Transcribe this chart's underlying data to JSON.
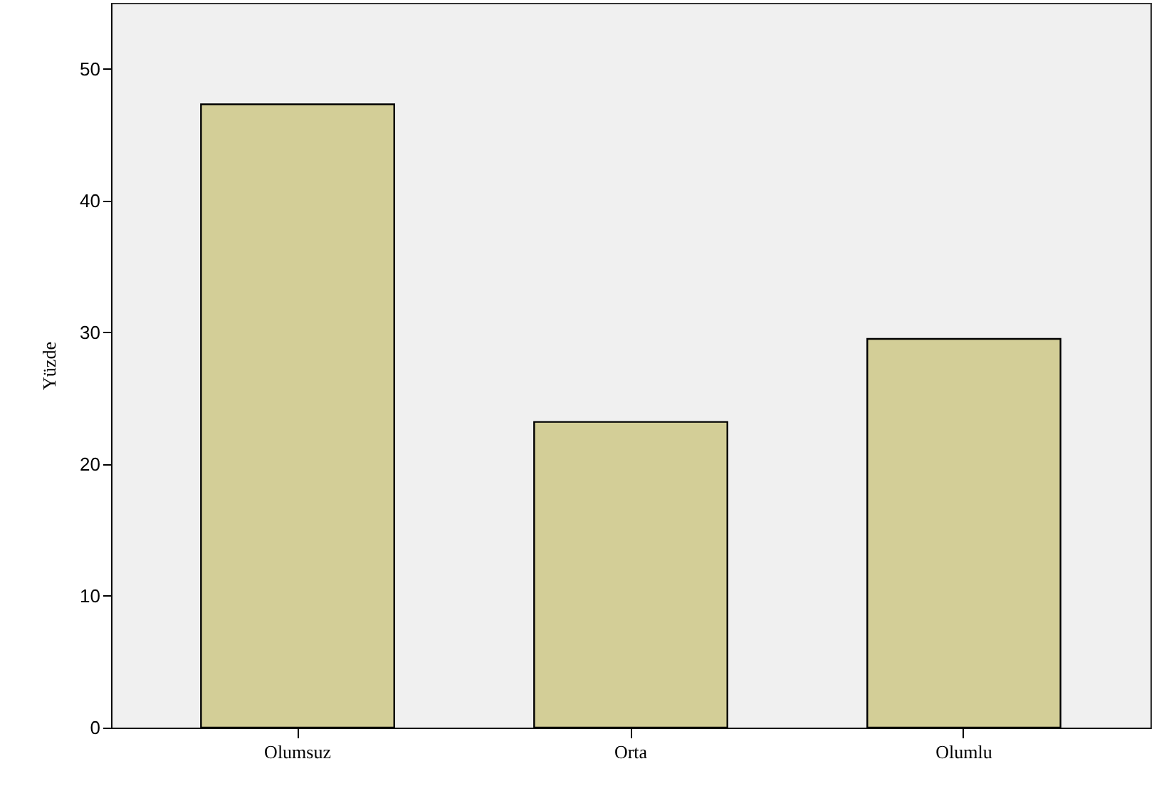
{
  "chart_data": {
    "type": "bar",
    "ylabel": "Yüzde",
    "categories": [
      "Olumsuz",
      "Orta",
      "Olumlu"
    ],
    "values": [
      47.3,
      23.2,
      29.5
    ],
    "color": "#d3ce97",
    "ylim": [
      0,
      55
    ],
    "yticks": [
      0,
      10,
      20,
      30,
      40,
      50
    ],
    "grid": false
  }
}
